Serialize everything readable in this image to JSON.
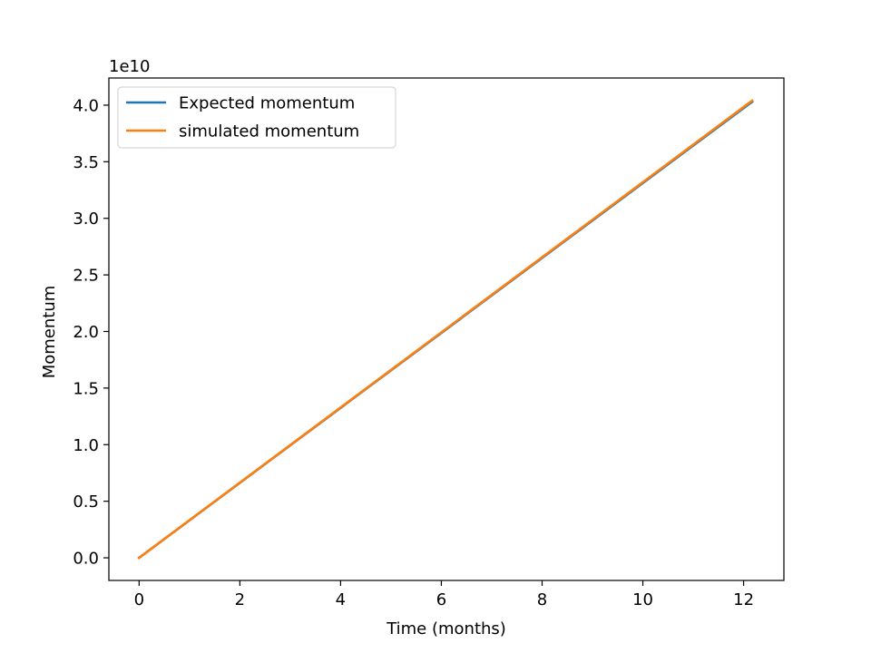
{
  "chart_data": {
    "type": "line",
    "title": "",
    "xlabel": "Time (months)",
    "ylabel": "Momentum",
    "y_offset_label": "1e10",
    "xlim": [
      -0.6,
      12.8
    ],
    "ylim": [
      -0.2,
      4.24
    ],
    "x_ticks": [
      0,
      2,
      4,
      6,
      8,
      10,
      12
    ],
    "x_tick_labels": [
      "0",
      "2",
      "4",
      "6",
      "8",
      "10",
      "12"
    ],
    "y_ticks": [
      0.0,
      0.5,
      1.0,
      1.5,
      2.0,
      2.5,
      3.0,
      3.5,
      4.0
    ],
    "y_tick_labels": [
      "0.0",
      "0.5",
      "1.0",
      "1.5",
      "2.0",
      "2.5",
      "3.0",
      "3.5",
      "4.0"
    ],
    "grid": false,
    "legend_position": "top-left",
    "series": [
      {
        "name": "Expected momentum",
        "color": "#1f77b4",
        "x": [
          0,
          12.17
        ],
        "y": [
          0.0,
          4.03
        ]
      },
      {
        "name": "simulated momentum",
        "color": "#ff7f0e",
        "x": [
          0,
          12.17
        ],
        "y": [
          0.0,
          4.04
        ]
      }
    ]
  }
}
